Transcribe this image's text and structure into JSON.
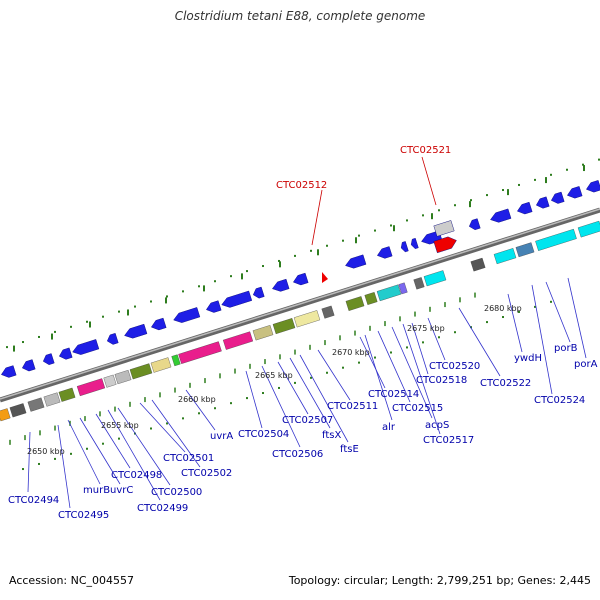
{
  "title": "Clostridium tetani E88, complete genome",
  "footer": {
    "accession": "Accession: NC_004557",
    "summary": "Topology: circular; Length: 2,799,251 bp; Genes: 2,445"
  },
  "kbp_labels": [
    "2650 kbp",
    "2655 kbp",
    "2660 kbp",
    "2665 kbp",
    "2670 kbp",
    "2675 kbp",
    "2680 kbp"
  ],
  "gene_labels_blue": [
    "CTC02494",
    "CTC02495",
    "murB",
    "uvrC",
    "CTC02498",
    "CTC02499",
    "CTC02500",
    "CTC02501",
    "CTC02502",
    "uvrA",
    "CTC02504",
    "CTC02506",
    "CTC02507",
    "ftsX",
    "ftsE",
    "CTC02511",
    "alr",
    "CTC02514",
    "CTC02515",
    "acpS",
    "CTC02517",
    "CTC02518",
    "CTC02520",
    "CTC02522",
    "ywdH",
    "CTC02524",
    "porB",
    "porA"
  ],
  "gene_labels_red": [
    "CTC02512",
    "CTC02521"
  ],
  "colors": {
    "gene_blue": "#1e1ee6",
    "red_gene": "#ee0000",
    "label_blue": "#0000aa",
    "label_red": "#cc0000",
    "backbone": "#888888",
    "tick_green": "#2e7d1e"
  }
}
